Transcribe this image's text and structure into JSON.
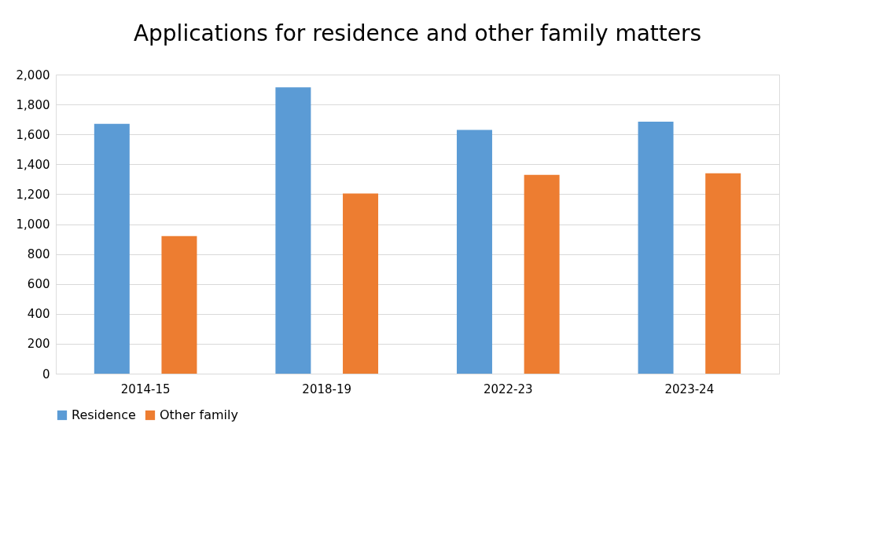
{
  "chart_data": {
    "type": "bar",
    "title": "Applications for residence and other family matters",
    "categories": [
      "2014-15",
      "2018-19",
      "2022-23",
      "2023-24"
    ],
    "series": [
      {
        "name": "Residence",
        "color": "#5b9bd5",
        "values": [
          1670,
          1915,
          1630,
          1685
        ]
      },
      {
        "name": "Other family",
        "color": "#ed7d31",
        "values": [
          920,
          1205,
          1330,
          1340
        ]
      }
    ],
    "ylim": [
      0,
      2000
    ],
    "yticks": [
      0,
      200,
      400,
      600,
      800,
      {
        "value": 1000,
        "label": "1,000"
      },
      {
        "value": 1200,
        "label": "1,200"
      },
      {
        "value": 1400,
        "label": "1,400"
      },
      {
        "value": 1600,
        "label": "1,600"
      },
      {
        "value": 1800,
        "label": "1,800"
      },
      {
        "value": 2000,
        "label": "2,000"
      }
    ],
    "grid": "y",
    "legend": "bottom"
  }
}
